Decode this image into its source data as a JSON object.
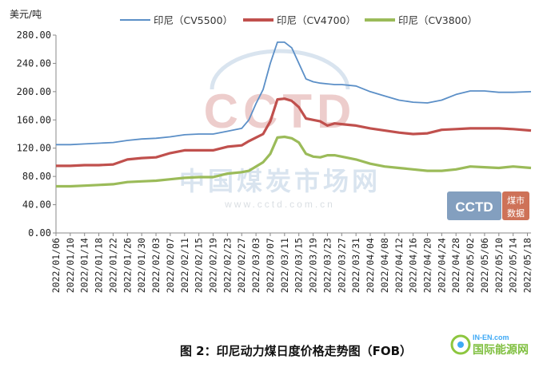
{
  "chart_data": {
    "type": "line",
    "title": "",
    "caption": "图 2：印尼动力煤日度价格走势图（FOB）",
    "ylabel": "美元/吨",
    "xlabel": "",
    "ylim": [
      0,
      280
    ],
    "y_ticks": [
      "0.00",
      "40.00",
      "80.00",
      "120.00",
      "160.00",
      "200.00",
      "240.00",
      "280.00"
    ],
    "x_ticks": [
      "2022/01/06",
      "2022/01/10",
      "2022/01/14",
      "2022/01/18",
      "2022/01/22",
      "2022/01/26",
      "2022/01/30",
      "2022/02/03",
      "2022/02/07",
      "2022/02/11",
      "2022/02/15",
      "2022/02/19",
      "2022/02/23",
      "2022/02/27",
      "2022/03/03",
      "2022/03/07",
      "2022/03/11",
      "2022/03/15",
      "2022/03/19",
      "2022/03/23",
      "2022/03/27",
      "2022/03/31",
      "2022/04/04",
      "2022/04/08",
      "2022/04/12",
      "2022/04/16",
      "2022/04/20",
      "2022/04/24",
      "2022/04/28",
      "2022/05/02",
      "2022/05/06",
      "2022/05/10",
      "2022/05/14",
      "2022/05/18"
    ],
    "x_range": [
      "2022/01/06",
      "2022/05/19"
    ],
    "grid": false,
    "legend_position": "top",
    "series": [
      {
        "name": "印尼（CV5500）",
        "color": "#5b8fc7",
        "points": [
          [
            "2022/01/06",
            125
          ],
          [
            "2022/01/10",
            125
          ],
          [
            "2022/01/14",
            126
          ],
          [
            "2022/01/18",
            127
          ],
          [
            "2022/01/22",
            128
          ],
          [
            "2022/01/26",
            131
          ],
          [
            "2022/01/30",
            133
          ],
          [
            "2022/02/03",
            134
          ],
          [
            "2022/02/07",
            136
          ],
          [
            "2022/02/11",
            139
          ],
          [
            "2022/02/15",
            140
          ],
          [
            "2022/02/19",
            140
          ],
          [
            "2022/02/23",
            144
          ],
          [
            "2022/02/27",
            148
          ],
          [
            "2022/03/01",
            160
          ],
          [
            "2022/03/03",
            183
          ],
          [
            "2022/03/05",
            203
          ],
          [
            "2022/03/07",
            240
          ],
          [
            "2022/03/09",
            270
          ],
          [
            "2022/03/11",
            270
          ],
          [
            "2022/03/13",
            262
          ],
          [
            "2022/03/15",
            240
          ],
          [
            "2022/03/17",
            218
          ],
          [
            "2022/03/19",
            214
          ],
          [
            "2022/03/21",
            212
          ],
          [
            "2022/03/23",
            211
          ],
          [
            "2022/03/25",
            210
          ],
          [
            "2022/03/27",
            210
          ],
          [
            "2022/03/31",
            208
          ],
          [
            "2022/04/04",
            200
          ],
          [
            "2022/04/08",
            194
          ],
          [
            "2022/04/12",
            188
          ],
          [
            "2022/04/16",
            185
          ],
          [
            "2022/04/20",
            184
          ],
          [
            "2022/04/24",
            188
          ],
          [
            "2022/04/28",
            196
          ],
          [
            "2022/05/02",
            201
          ],
          [
            "2022/05/06",
            201
          ],
          [
            "2022/05/10",
            199
          ],
          [
            "2022/05/14",
            199
          ],
          [
            "2022/05/19",
            200
          ]
        ]
      },
      {
        "name": "印尼（CV4700）",
        "color": "#c0504d",
        "points": [
          [
            "2022/01/06",
            95
          ],
          [
            "2022/01/10",
            95
          ],
          [
            "2022/01/14",
            96
          ],
          [
            "2022/01/18",
            96
          ],
          [
            "2022/01/22",
            97
          ],
          [
            "2022/01/26",
            104
          ],
          [
            "2022/01/30",
            106
          ],
          [
            "2022/02/03",
            107
          ],
          [
            "2022/02/07",
            113
          ],
          [
            "2022/02/11",
            117
          ],
          [
            "2022/02/15",
            117
          ],
          [
            "2022/02/19",
            117
          ],
          [
            "2022/02/23",
            122
          ],
          [
            "2022/02/27",
            124
          ],
          [
            "2022/03/01",
            130
          ],
          [
            "2022/03/03",
            135
          ],
          [
            "2022/03/05",
            140
          ],
          [
            "2022/03/07",
            158
          ],
          [
            "2022/03/09",
            189
          ],
          [
            "2022/03/11",
            190
          ],
          [
            "2022/03/13",
            187
          ],
          [
            "2022/03/15",
            178
          ],
          [
            "2022/03/17",
            162
          ],
          [
            "2022/03/19",
            160
          ],
          [
            "2022/03/21",
            158
          ],
          [
            "2022/03/23",
            152
          ],
          [
            "2022/03/25",
            155
          ],
          [
            "2022/03/27",
            154
          ],
          [
            "2022/03/31",
            152
          ],
          [
            "2022/04/04",
            148
          ],
          [
            "2022/04/08",
            145
          ],
          [
            "2022/04/12",
            142
          ],
          [
            "2022/04/16",
            140
          ],
          [
            "2022/04/20",
            141
          ],
          [
            "2022/04/24",
            146
          ],
          [
            "2022/04/28",
            147
          ],
          [
            "2022/05/02",
            148
          ],
          [
            "2022/05/06",
            148
          ],
          [
            "2022/05/10",
            148
          ],
          [
            "2022/05/14",
            147
          ],
          [
            "2022/05/19",
            145
          ]
        ]
      },
      {
        "name": "印尼（CV3800）",
        "color": "#9bbb59",
        "points": [
          [
            "2022/01/06",
            66
          ],
          [
            "2022/01/10",
            66
          ],
          [
            "2022/01/14",
            67
          ],
          [
            "2022/01/18",
            68
          ],
          [
            "2022/01/22",
            69
          ],
          [
            "2022/01/26",
            72
          ],
          [
            "2022/01/30",
            73
          ],
          [
            "2022/02/03",
            74
          ],
          [
            "2022/02/07",
            76
          ],
          [
            "2022/02/11",
            78
          ],
          [
            "2022/02/15",
            79
          ],
          [
            "2022/02/19",
            79
          ],
          [
            "2022/02/23",
            84
          ],
          [
            "2022/02/27",
            86
          ],
          [
            "2022/03/01",
            88
          ],
          [
            "2022/03/03",
            94
          ],
          [
            "2022/03/05",
            100
          ],
          [
            "2022/03/07",
            112
          ],
          [
            "2022/03/09",
            135
          ],
          [
            "2022/03/11",
            136
          ],
          [
            "2022/03/13",
            134
          ],
          [
            "2022/03/15",
            128
          ],
          [
            "2022/03/17",
            112
          ],
          [
            "2022/03/19",
            108
          ],
          [
            "2022/03/21",
            107
          ],
          [
            "2022/03/23",
            110
          ],
          [
            "2022/03/25",
            110
          ],
          [
            "2022/03/27",
            108
          ],
          [
            "2022/03/31",
            104
          ],
          [
            "2022/04/04",
            98
          ],
          [
            "2022/04/08",
            94
          ],
          [
            "2022/04/12",
            92
          ],
          [
            "2022/04/16",
            90
          ],
          [
            "2022/04/20",
            88
          ],
          [
            "2022/04/24",
            88
          ],
          [
            "2022/04/28",
            90
          ],
          [
            "2022/05/02",
            94
          ],
          [
            "2022/05/06",
            93
          ],
          [
            "2022/05/10",
            92
          ],
          [
            "2022/05/14",
            94
          ],
          [
            "2022/05/19",
            92
          ]
        ]
      }
    ]
  },
  "watermarks": {
    "main_logo_text": "CCTD",
    "main_site_name": "中国煤炭市场网",
    "main_url": "www.cctd.com.cn",
    "badge_logo_text": "CCTD",
    "badge_label_line1": "煤市",
    "badge_label_line2": "数据",
    "corner_brand_top": "IN-EN.com",
    "corner_brand_bottom": "国际能源网"
  }
}
